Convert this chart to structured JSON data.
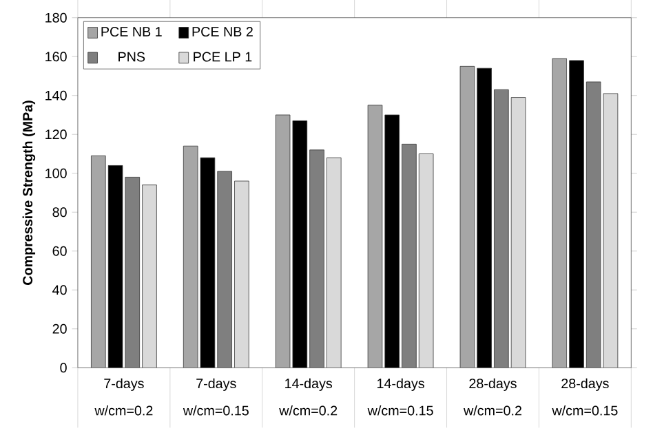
{
  "chart_data": {
    "type": "bar",
    "ylabel": "Compressive Strength (MPa)",
    "categories": [
      "7-days w/cm=0.2",
      "7-days w/cm=0.15",
      "14-days w/cm=0.2",
      "14-days w/cm=0.15",
      "28-days w/cm=0.2",
      "28-days w/cm=0.15"
    ],
    "series": [
      {
        "name": "PCE NB 1",
        "color": "#a6a6a6",
        "values": [
          109,
          114,
          130,
          135,
          155,
          159
        ]
      },
      {
        "name": "PCE NB 2",
        "color": "#000000",
        "values": [
          104,
          108,
          127,
          130,
          154,
          158
        ]
      },
      {
        "name": "PNS",
        "color": "#7f7f7f",
        "values": [
          98,
          101,
          112,
          115,
          143,
          147
        ]
      },
      {
        "name": "PCE LP 1",
        "color": "#d9d9d9",
        "values": [
          94,
          96,
          108,
          110,
          139,
          141
        ]
      }
    ],
    "ylim": [
      0,
      180
    ],
    "yticks": [
      0,
      20,
      40,
      60,
      80,
      100,
      120,
      140,
      160,
      180
    ],
    "legend": "top left",
    "grid": false
  }
}
